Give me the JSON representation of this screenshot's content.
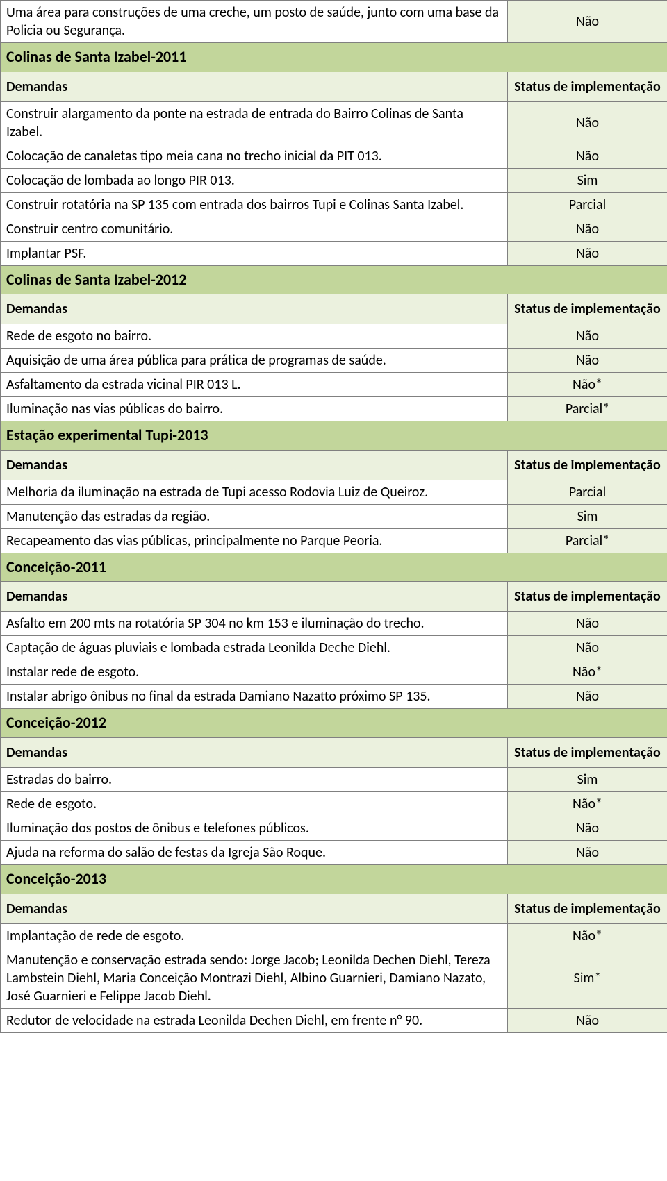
{
  "colors": {
    "section_bg": "#c2d69b",
    "subheader_bg": "#ebf1de",
    "status_bg": "#ebf1de",
    "border": "#808080",
    "text": "#000000",
    "page_bg": "#ffffff"
  },
  "typography": {
    "font_family": "Calibri",
    "body_fontsize_pt": 15,
    "header_fontsize_pt": 17,
    "header_weight": "bold"
  },
  "labels": {
    "demandas": "Demandas",
    "status": "Status de implementação"
  },
  "lead_rows": [
    {
      "text": "Uma área para construções de uma creche, um posto de saúde, junto com uma base da Policia ou Segurança.",
      "status": "Não"
    }
  ],
  "sections": [
    {
      "title": "Colinas de Santa Izabel-2011",
      "rows": [
        {
          "text": "Construir alargamento da ponte na estrada de entrada do Bairro Colinas de Santa Izabel.",
          "status": "Não"
        },
        {
          "text": "Colocação de canaletas tipo meia cana no trecho inicial da PIT 013.",
          "status": "Não"
        },
        {
          "text": "Colocação de lombada ao longo PIR 013.",
          "status": "Sim"
        },
        {
          "text": "Construir rotatória na SP 135 com entrada dos bairros Tupi e Colinas Santa Izabel.",
          "status": "Parcial"
        },
        {
          "text": "Construir centro comunitário.",
          "status": "Não"
        },
        {
          "text": "Implantar PSF.",
          "status": "Não"
        }
      ]
    },
    {
      "title": "Colinas de Santa Izabel-2012",
      "rows": [
        {
          "text": "Rede de esgoto no bairro.",
          "status": "Não"
        },
        {
          "text": "Aquisição de uma área pública para prática de programas de saúde.",
          "status": "Não"
        },
        {
          "text": "Asfaltamento da estrada vicinal PIR 013 L.",
          "status": "Não*"
        },
        {
          "text": "Iluminação nas vias públicas do bairro.",
          "status": "Parcial*"
        }
      ]
    },
    {
      "title": "Estação experimental Tupi-2013",
      "rows": [
        {
          "text": "Melhoria da iluminação na estrada de Tupi acesso Rodovia Luiz de Queiroz.",
          "status": "Parcial"
        },
        {
          "text": "Manutenção das estradas da região.",
          "status": "Sim"
        },
        {
          "text": "Recapeamento das vias públicas, principalmente no Parque Peoria.",
          "status": "Parcial*"
        }
      ]
    },
    {
      "title": "Conceição-2011",
      "rows": [
        {
          "text": "Asfalto em 200 mts na rotatória SP 304 no km 153 e iluminação do trecho.",
          "status": "Não"
        },
        {
          "text": "Captação de águas pluviais e lombada estrada Leonilda Deche Diehl.",
          "status": "Não"
        },
        {
          "text": "Instalar rede de esgoto.",
          "status": "Não*"
        },
        {
          "text": "Instalar abrigo ônibus no final da estrada Damiano Nazatto próximo SP 135.",
          "status": "Não"
        }
      ]
    },
    {
      "title": "Conceição-2012",
      "rows": [
        {
          "text": "Estradas do bairro.",
          "status": "Sim"
        },
        {
          "text": "Rede de esgoto.",
          "status": "Não*"
        },
        {
          "text": "Iluminação dos postos de ônibus e telefones públicos.",
          "status": "Não"
        },
        {
          "text": "Ajuda na reforma do salão de festas da Igreja São Roque.",
          "status": "Não"
        }
      ]
    },
    {
      "title": "Conceição-2013",
      "rows": [
        {
          "text": "Implantação de rede de esgoto.",
          "status": "Não*"
        },
        {
          "text": "Manutenção e conservação estrada sendo: Jorge Jacob; Leonilda Dechen Diehl, Tereza Lambstein Diehl, Maria Conceição Montrazi Diehl, Albino Guarnieri, Damiano Nazato, José Guarnieri e Felippe Jacob Diehl.",
          "status": "Sim*"
        },
        {
          "text": "Redutor de velocidade na estrada Leonilda Dechen Diehl, em frente n° 90.",
          "status": "Não"
        }
      ]
    }
  ]
}
